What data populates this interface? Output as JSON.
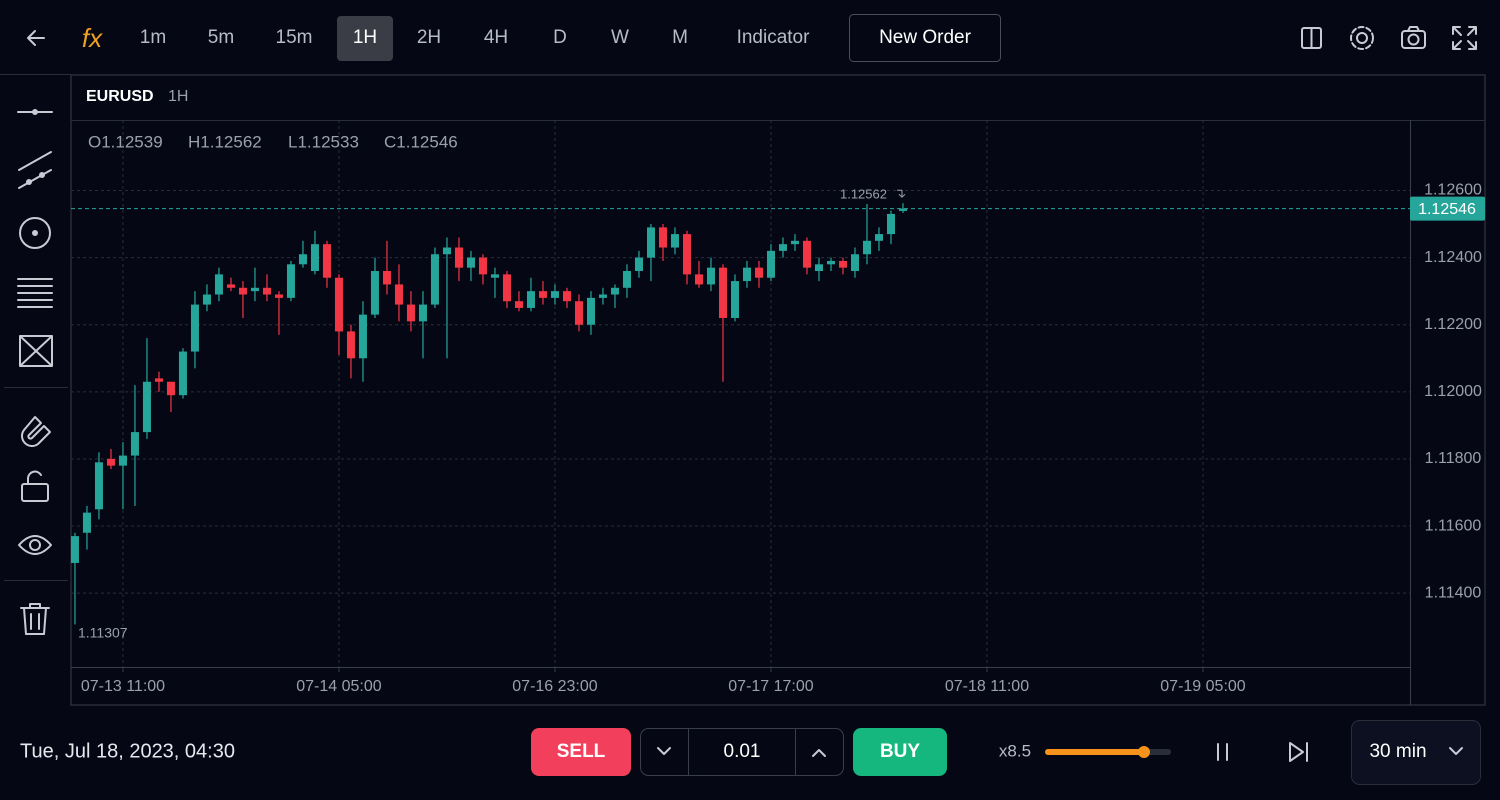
{
  "toolbar": {
    "timeframes": [
      {
        "label": "1m",
        "selected": false
      },
      {
        "label": "5m",
        "selected": false
      },
      {
        "label": "15m",
        "selected": false
      },
      {
        "label": "1H",
        "selected": true
      },
      {
        "label": "2H",
        "selected": false
      },
      {
        "label": "4H",
        "selected": false
      },
      {
        "label": "D",
        "selected": false
      },
      {
        "label": "W",
        "selected": false
      },
      {
        "label": "M",
        "selected": false
      }
    ],
    "indicator": "Indicator",
    "new_order": "New Order"
  },
  "chart_data": {
    "type": "candlestick",
    "symbol": "EURUSD",
    "interval": "1H",
    "ohlc_legend": [
      "O1.12539",
      "H1.12562",
      "L1.12533",
      "C1.12546"
    ],
    "open": [
      1.1149,
      1.1158,
      1.1165,
      1.118,
      1.1178,
      1.1181,
      1.1188,
      1.1204,
      1.1203,
      1.1199,
      1.1212,
      1.1226,
      1.1229,
      1.1232,
      1.1231,
      1.123,
      1.1231,
      1.1229,
      1.1228,
      1.1238,
      1.1236,
      1.1244,
      1.1234,
      1.1218,
      1.121,
      1.1223,
      1.1236,
      1.1232,
      1.1226,
      1.1221,
      1.1226,
      1.1241,
      1.1243,
      1.1237,
      1.124,
      1.1234,
      1.1235,
      1.1227,
      1.1225,
      1.123,
      1.1228,
      1.123,
      1.1227,
      1.122,
      1.1228,
      1.1229,
      1.1231,
      1.1236,
      1.124,
      1.1249,
      1.1243,
      1.1247,
      1.1235,
      1.1232,
      1.1237,
      1.1222,
      1.1233,
      1.1237,
      1.1234,
      1.1242,
      1.1244,
      1.1245,
      1.1236,
      1.1238,
      1.1239,
      1.1236,
      1.1241,
      1.1245,
      1.1247,
      1.12539
    ],
    "high": [
      1.1158,
      1.1166,
      1.1182,
      1.1183,
      1.1185,
      1.1202,
      1.1216,
      1.1206,
      1.1203,
      1.1213,
      1.123,
      1.1232,
      1.1237,
      1.1234,
      1.1233,
      1.1237,
      1.1235,
      1.123,
      1.1239,
      1.1245,
      1.1248,
      1.1245,
      1.1235,
      1.122,
      1.1227,
      1.124,
      1.1245,
      1.1238,
      1.123,
      1.123,
      1.1243,
      1.1246,
      1.1246,
      1.1242,
      1.1241,
      1.1237,
      1.1236,
      1.123,
      1.1234,
      1.1233,
      1.1232,
      1.1231,
      1.1229,
      1.123,
      1.1231,
      1.1232,
      1.1238,
      1.1242,
      1.125,
      1.125,
      1.1249,
      1.1248,
      1.1239,
      1.124,
      1.1238,
      1.1235,
      1.1239,
      1.1239,
      1.1244,
      1.1246,
      1.1247,
      1.1246,
      1.124,
      1.124,
      1.124,
      1.1243,
      1.1256,
      1.1249,
      1.1254,
      1.12562
    ],
    "low": [
      1.11307,
      1.1153,
      1.1162,
      1.1177,
      1.1165,
      1.1166,
      1.1186,
      1.12,
      1.1194,
      1.1198,
      1.1207,
      1.1224,
      1.1227,
      1.123,
      1.1222,
      1.1227,
      1.1227,
      1.1217,
      1.1227,
      1.1237,
      1.1235,
      1.1231,
      1.1211,
      1.1204,
      1.1203,
      1.1222,
      1.1229,
      1.1221,
      1.1218,
      1.121,
      1.1225,
      1.121,
      1.1233,
      1.1233,
      1.1232,
      1.1228,
      1.1225,
      1.1224,
      1.1224,
      1.1226,
      1.1226,
      1.1225,
      1.1218,
      1.1217,
      1.1226,
      1.1225,
      1.1228,
      1.1234,
      1.1233,
      1.1239,
      1.1241,
      1.1232,
      1.1231,
      1.123,
      1.1203,
      1.1221,
      1.1231,
      1.1231,
      1.1233,
      1.124,
      1.1242,
      1.1235,
      1.1233,
      1.1236,
      1.1235,
      1.1234,
      1.1238,
      1.1242,
      1.1244,
      1.12533
    ],
    "close": [
      1.1157,
      1.1164,
      1.1179,
      1.1178,
      1.1181,
      1.1188,
      1.1203,
      1.1203,
      1.1199,
      1.1212,
      1.1226,
      1.1229,
      1.1235,
      1.1231,
      1.1229,
      1.1231,
      1.1229,
      1.1228,
      1.1238,
      1.1241,
      1.1244,
      1.1234,
      1.1218,
      1.121,
      1.1223,
      1.1236,
      1.1232,
      1.1226,
      1.1221,
      1.1226,
      1.1241,
      1.1243,
      1.1237,
      1.124,
      1.1235,
      1.1235,
      1.1227,
      1.1225,
      1.123,
      1.1228,
      1.123,
      1.1227,
      1.122,
      1.1228,
      1.1229,
      1.1231,
      1.1236,
      1.124,
      1.1249,
      1.1243,
      1.1247,
      1.1235,
      1.1232,
      1.1237,
      1.1222,
      1.1233,
      1.1237,
      1.1234,
      1.1242,
      1.1244,
      1.1245,
      1.1237,
      1.1238,
      1.1239,
      1.1237,
      1.1241,
      1.1245,
      1.1247,
      1.1253,
      1.12546
    ],
    "up_color": "#26a69a",
    "down_color": "#f23645",
    "last_price": 1.12546,
    "max_label": 1.12562,
    "min_label": 1.11307,
    "ylim": [
      1.1118,
      1.1281
    ],
    "yticks": [
      {
        "value": 1.114,
        "label": "1.11400"
      },
      {
        "value": 1.116,
        "label": "1.11600"
      },
      {
        "value": 1.118,
        "label": "1.11800"
      },
      {
        "value": 1.12,
        "label": "1.12000"
      },
      {
        "value": 1.122,
        "label": "1.12200"
      },
      {
        "value": 1.124,
        "label": "1.12400"
      },
      {
        "value": 1.126,
        "label": "1.12600"
      }
    ],
    "xlim": [
      -0.33,
      111.25
    ],
    "xticks": [
      {
        "value": 4,
        "label": "07-13 11:00"
      },
      {
        "value": 22,
        "label": "07-14 05:00"
      },
      {
        "value": 40,
        "label": "07-16 23:00"
      },
      {
        "value": 58,
        "label": "07-17 17:00"
      },
      {
        "value": 76,
        "label": "07-18 11:00"
      },
      {
        "value": 94,
        "label": "07-19 05:00"
      }
    ],
    "grid": true
  },
  "footer": {
    "datetime": "Tue, Jul 18, 2023, 04:30",
    "sell": "SELL",
    "lot": "0.01",
    "buy": "BUY",
    "speed": "x8.5",
    "interval": "30 min"
  }
}
